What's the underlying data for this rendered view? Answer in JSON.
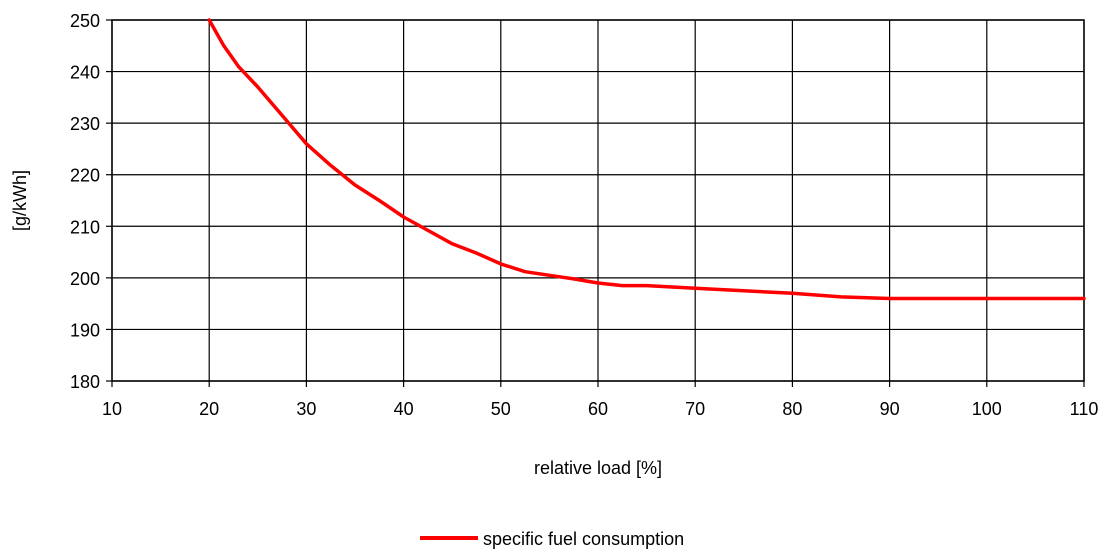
{
  "chart_data": {
    "type": "line",
    "title": "",
    "xlabel": "relative load [%]",
    "ylabel": "[g/kWh]",
    "xlim": [
      10,
      110
    ],
    "ylim": [
      180,
      250
    ],
    "xticks": [
      10,
      20,
      30,
      40,
      50,
      60,
      70,
      80,
      90,
      100,
      110
    ],
    "yticks": [
      180,
      190,
      200,
      210,
      220,
      230,
      240,
      250
    ],
    "grid": true,
    "legend_position": "bottom-center",
    "series": [
      {
        "name": "specific fuel consumption",
        "color": "#ff0000",
        "x": [
          20,
          21.5,
          23,
          25,
          27.5,
          30,
          32.5,
          35,
          37.5,
          40,
          42.5,
          45,
          47.5,
          50,
          52.5,
          55,
          57.5,
          60,
          62.5,
          65,
          70,
          75,
          80,
          85,
          90,
          95,
          100,
          105,
          110
        ],
        "y": [
          250,
          245,
          241,
          237,
          231.5,
          226,
          221.8,
          218,
          215,
          211.8,
          209.2,
          206.6,
          204.8,
          202.7,
          201.2,
          200.5,
          199.8,
          199,
          198.5,
          198.5,
          198,
          197.5,
          197,
          196.3,
          196,
          196,
          196,
          196,
          196
        ]
      }
    ]
  }
}
